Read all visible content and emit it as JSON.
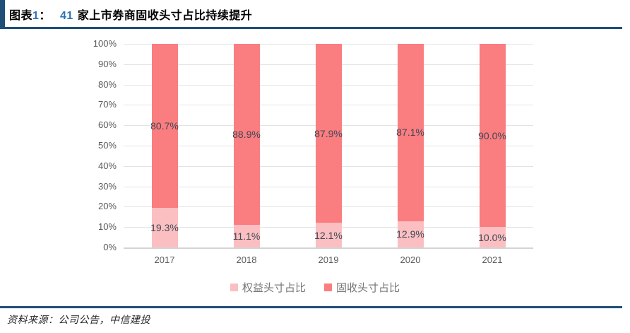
{
  "page": {
    "background": "#FFFFFF",
    "accent_color": "#1F4E79"
  },
  "header": {
    "figure_label": "图表",
    "figure_number": "1",
    "colon": "：",
    "count_number": "41",
    "title_rest": "家上市券商固收头寸占比持续提升",
    "number_color": "#2E74B5",
    "text_color": "#000000"
  },
  "footer": {
    "source_text": "资料来源：公司公告，中信建投"
  },
  "chart_data": {
    "type": "bar",
    "stacked": true,
    "title": "41 家上市券商固收头寸占比持续提升",
    "categories": [
      "2017",
      "2018",
      "2019",
      "2020",
      "2021"
    ],
    "series": [
      {
        "name": "权益头寸占比",
        "color": "#FBBFC1",
        "values": [
          19.3,
          11.1,
          12.1,
          12.9,
          10.0
        ]
      },
      {
        "name": "固收头寸占比",
        "color": "#FA7D80",
        "values": [
          80.7,
          88.9,
          87.9,
          87.1,
          90.0
        ]
      }
    ],
    "value_label_suffix": "%",
    "ylim": [
      0,
      100
    ],
    "ytick_labels": [
      "0%",
      "10%",
      "20%",
      "30%",
      "40%",
      "50%",
      "60%",
      "70%",
      "80%",
      "90%",
      "100%"
    ],
    "grid": true,
    "legend_position": "bottom",
    "axis_label_color": "#595959",
    "data_label_color": "#404756",
    "gridline_color": "#E3E3E3",
    "legend_text_color": "#757575"
  }
}
